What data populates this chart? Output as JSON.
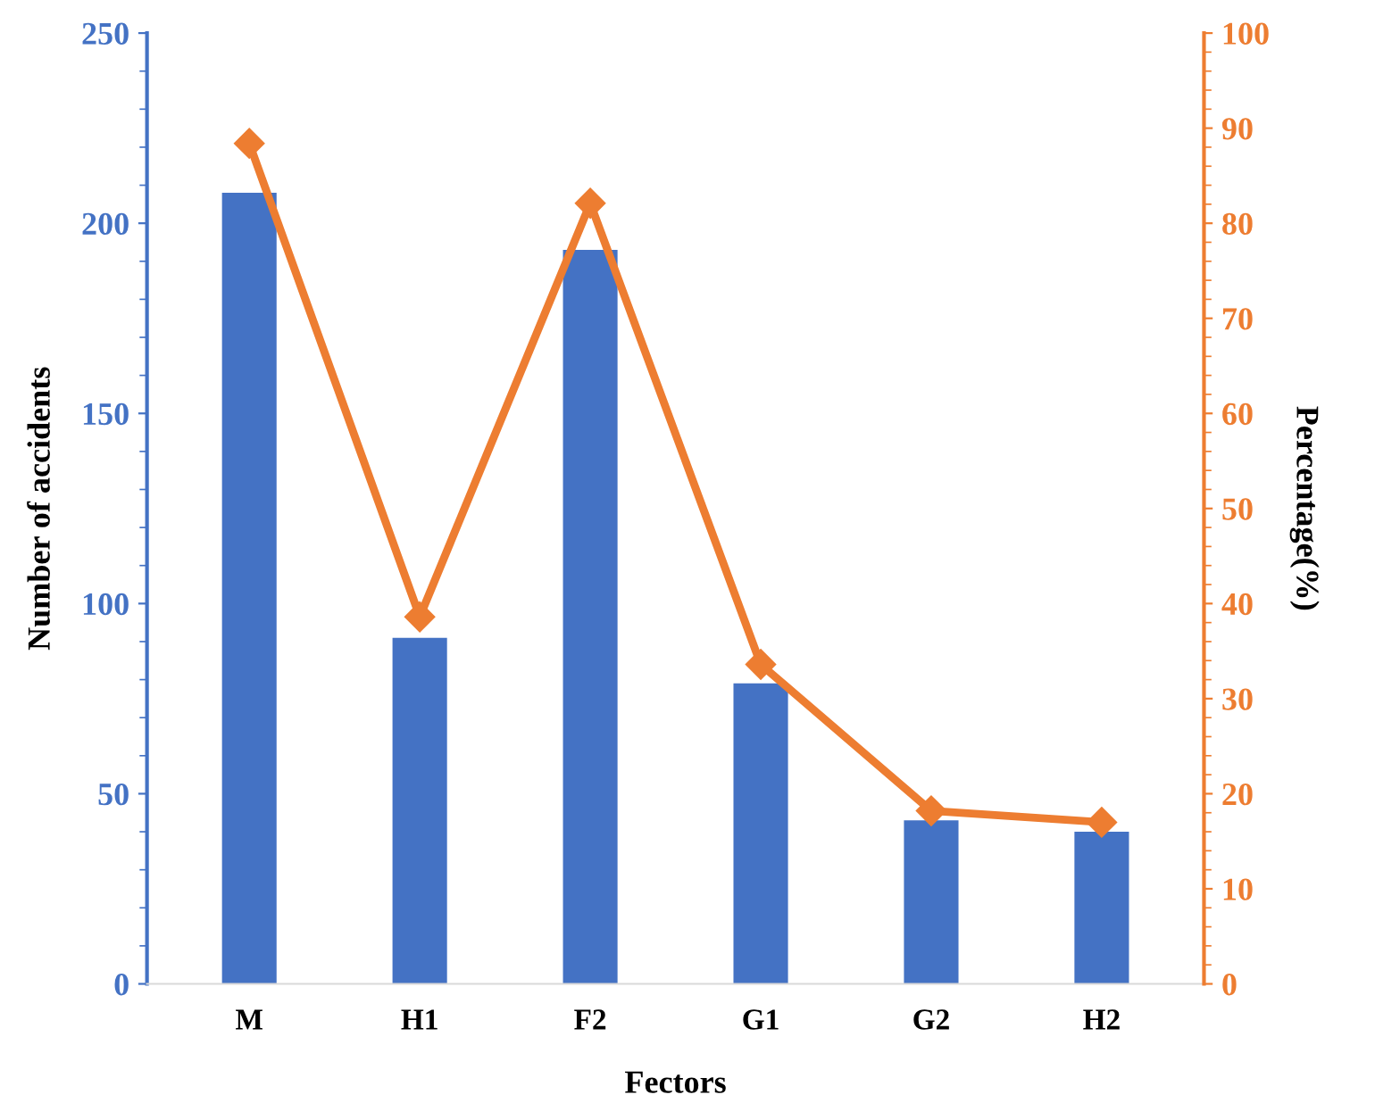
{
  "chart_data": {
    "type": "bar",
    "xlabel": "Fectors",
    "ylabel": "Number of accidents",
    "y2label": "Percentage(%)",
    "categories": [
      "M",
      "H1",
      "F2",
      "G1",
      "G2",
      "H2"
    ],
    "series": [
      {
        "color": "#4472c4",
        "values": [
          208,
          91,
          193,
          79,
          43,
          40
        ]
      },
      {
        "type": "line",
        "axis": "y2",
        "color": "#ed7d31",
        "marker": "diamond",
        "values": [
          88.4,
          38.6,
          82.1,
          33.6,
          18.2,
          17.0
        ]
      }
    ],
    "ylim": [
      0,
      250
    ],
    "yticks": [
      0,
      50,
      100,
      150,
      200,
      250
    ],
    "y2lim": [
      0,
      100
    ],
    "y2ticks": [
      0,
      10,
      20,
      30,
      40,
      50,
      60,
      70,
      80,
      90,
      100
    ],
    "grid": false,
    "legend": false
  }
}
